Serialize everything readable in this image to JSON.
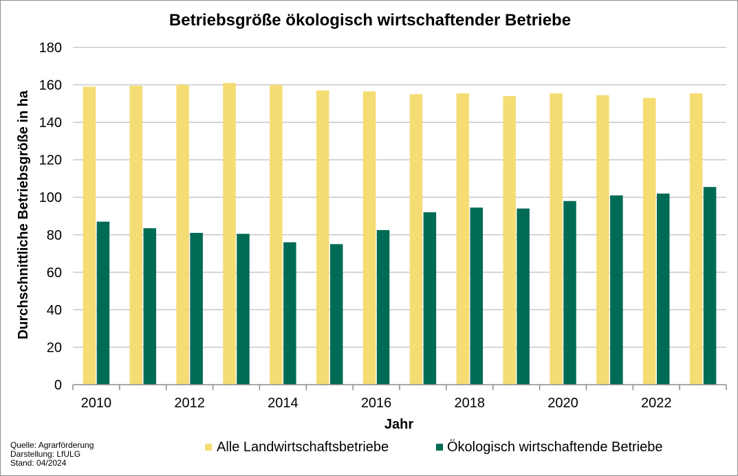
{
  "chart_data": {
    "type": "bar",
    "title": "Betriebsgröße ökologisch wirtschaftender Betriebe",
    "xlabel": "Jahr",
    "ylabel": "Durchschnittliche Betriebsgröße in ha",
    "ylim": [
      0,
      180
    ],
    "yticks": [
      0,
      20,
      40,
      60,
      80,
      100,
      120,
      140,
      160,
      180
    ],
    "categories": [
      "2010",
      "2011",
      "2012",
      "2013",
      "2014",
      "2015",
      "2016",
      "2017",
      "2018",
      "2019",
      "2020",
      "2021",
      "2022",
      "2023"
    ],
    "xtick_labels": [
      "2010",
      "",
      "2012",
      "",
      "2014",
      "",
      "2016",
      "",
      "2018",
      "",
      "2020",
      "",
      "2022",
      ""
    ],
    "grid": true,
    "legend_position": "bottom",
    "series": [
      {
        "name": "Alle Landwirtschaftsbetriebe",
        "color": "#f5dc73",
        "values": [
          159,
          159.5,
          160,
          161,
          160,
          157,
          156.5,
          155,
          155.5,
          154,
          155.5,
          154.5,
          153,
          155.5
        ]
      },
      {
        "name": "Ökologisch wirtschaftende Betriebe",
        "color": "#006b54",
        "values": [
          87,
          83.5,
          81,
          80.5,
          76,
          75,
          82.5,
          92,
          94.5,
          94,
          98,
          101,
          102,
          105.5
        ]
      }
    ]
  },
  "source_notes": {
    "line1": "Quelle: Agrarförderung",
    "line2": "Darstellung: LfULG",
    "line3": "Stand: 04/2024"
  }
}
